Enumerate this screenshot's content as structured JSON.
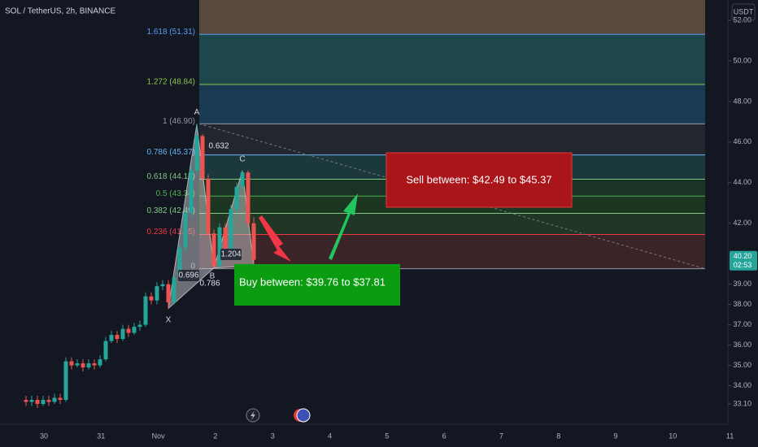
{
  "header": {
    "title": "SOL / TetherUS, 2h, BINANCE",
    "currency": "USDT"
  },
  "chart_data": {
    "type": "candlestick",
    "x_labels": [
      "30",
      "31",
      "Nov",
      "2",
      "3",
      "4",
      "5",
      "6",
      "7",
      "8",
      "9",
      "10",
      "11"
    ],
    "open": [
      33.3,
      33.2,
      33.3,
      33.1,
      33.3,
      33.2,
      33.4,
      33.3,
      35.2,
      35.0,
      35.1,
      34.9,
      35.1,
      35.0,
      35.3,
      36.2,
      36.5,
      36.3,
      36.8,
      36.6,
      36.9,
      37.0,
      38.4,
      38.2,
      38.9,
      39.0,
      38.1,
      39.3,
      40.8,
      42.5,
      44.6,
      46.3,
      44.2,
      41.5,
      39.9,
      41.8,
      40.6,
      42.7,
      43.8,
      44.5,
      42.0
    ],
    "high": [
      33.5,
      33.5,
      33.5,
      33.5,
      33.5,
      33.6,
      33.6,
      35.4,
      35.4,
      35.3,
      35.3,
      35.3,
      35.3,
      35.5,
      36.4,
      36.7,
      36.7,
      37.0,
      37.0,
      37.1,
      37.2,
      38.6,
      38.6,
      39.1,
      39.2,
      39.2,
      39.5,
      41.0,
      42.8,
      44.9,
      46.9,
      46.4,
      44.4,
      41.7,
      42.0,
      42.0,
      42.9,
      44.0,
      44.6,
      44.6,
      42.3
    ],
    "low": [
      33.0,
      33.0,
      32.9,
      33.0,
      33.0,
      33.1,
      33.1,
      33.2,
      34.8,
      34.9,
      34.7,
      34.8,
      34.8,
      34.9,
      35.2,
      36.1,
      36.1,
      36.2,
      36.4,
      36.5,
      36.7,
      36.9,
      38.0,
      38.0,
      38.7,
      37.8,
      38.0,
      39.1,
      40.6,
      42.3,
      44.4,
      44.0,
      41.3,
      39.8,
      39.8,
      40.4,
      40.4,
      42.5,
      43.6,
      41.8,
      39.9
    ],
    "close": [
      33.2,
      33.3,
      33.1,
      33.3,
      33.2,
      33.4,
      33.3,
      35.2,
      35.0,
      35.1,
      34.9,
      35.1,
      35.0,
      35.3,
      36.2,
      36.5,
      36.3,
      36.8,
      36.6,
      36.9,
      37.0,
      38.4,
      38.2,
      38.9,
      39.0,
      38.1,
      39.3,
      40.8,
      42.5,
      44.6,
      46.3,
      44.2,
      41.5,
      39.9,
      41.8,
      40.6,
      42.7,
      43.8,
      44.5,
      42.0,
      40.2
    ],
    "up_color": "#26a69a",
    "down_color": "#ef5350",
    "ylim": [
      32.1,
      53.0
    ],
    "yticks": [
      {
        "value": 52,
        "label": "52.00"
      },
      {
        "value": 50,
        "label": "50.00"
      },
      {
        "value": 48,
        "label": "48.00"
      },
      {
        "value": 46,
        "label": "46.00"
      },
      {
        "value": 44,
        "label": "44.00"
      },
      {
        "value": 42,
        "label": "42.00"
      },
      {
        "value": 39,
        "label": "39.00"
      },
      {
        "value": 38,
        "label": "38.00"
      },
      {
        "value": 37,
        "label": "37.00"
      },
      {
        "value": 36,
        "label": "36.00"
      },
      {
        "value": 35,
        "label": "35.00"
      },
      {
        "value": 34,
        "label": "34.00"
      },
      {
        "value": 33.1,
        "label": "33.10"
      }
    ],
    "last_price": {
      "value": 40.2,
      "label": "40.20"
    },
    "countdown": "02:53",
    "fibonacci": [
      {
        "label": "1.618 (51.31)",
        "value": 51.31,
        "color": "#5b9cf6",
        "fill": "#58493b"
      },
      {
        "label": "1.272 (48.84)",
        "value": 48.84,
        "color": "#8bc34a",
        "fill": "#1d474c"
      },
      {
        "label": "1 (46.90)",
        "value": 46.9,
        "color": "#9598a1",
        "fill": "#183a52"
      },
      {
        "label": "0.786 (45.37)",
        "value": 45.37,
        "color": "#64b5f6",
        "fill": "#22262f"
      },
      {
        "label": "0.618 (44.17)",
        "value": 44.17,
        "color": "#81c784",
        "fill": "#1b383c"
      },
      {
        "label": "0.5 (43.34)",
        "value": 43.34,
        "color": "#4caf50",
        "fill": "#1b3326"
      },
      {
        "label": "0.382 (42.49)",
        "value": 42.49,
        "color": "#81c784",
        "fill": "#1c3622"
      },
      {
        "label": "0.236 (41.45)",
        "value": 41.45,
        "color": "#f23645",
        "fill": "#1f3724"
      },
      {
        "label": "0",
        "value": 39.76,
        "color": "#9598a1",
        "fill": "#3a2428"
      }
    ],
    "pattern": {
      "points": [
        {
          "label": "X",
          "index": 25,
          "value": 37.8
        },
        {
          "label": "A",
          "index": 30,
          "value": 46.9
        },
        {
          "label": "B",
          "index": 33,
          "value": 39.8
        },
        {
          "label": "C",
          "index": 38,
          "value": 44.6
        },
        {
          "label": "D",
          "index": 40,
          "value": 39.9
        }
      ],
      "ratios": [
        "0.696",
        "0.786",
        "0.632",
        "1.204"
      ]
    },
    "annotations": {
      "sell": "Sell between: $42.49 to $45.37",
      "buy": "Buy between: $39.76 to $37.81"
    }
  }
}
